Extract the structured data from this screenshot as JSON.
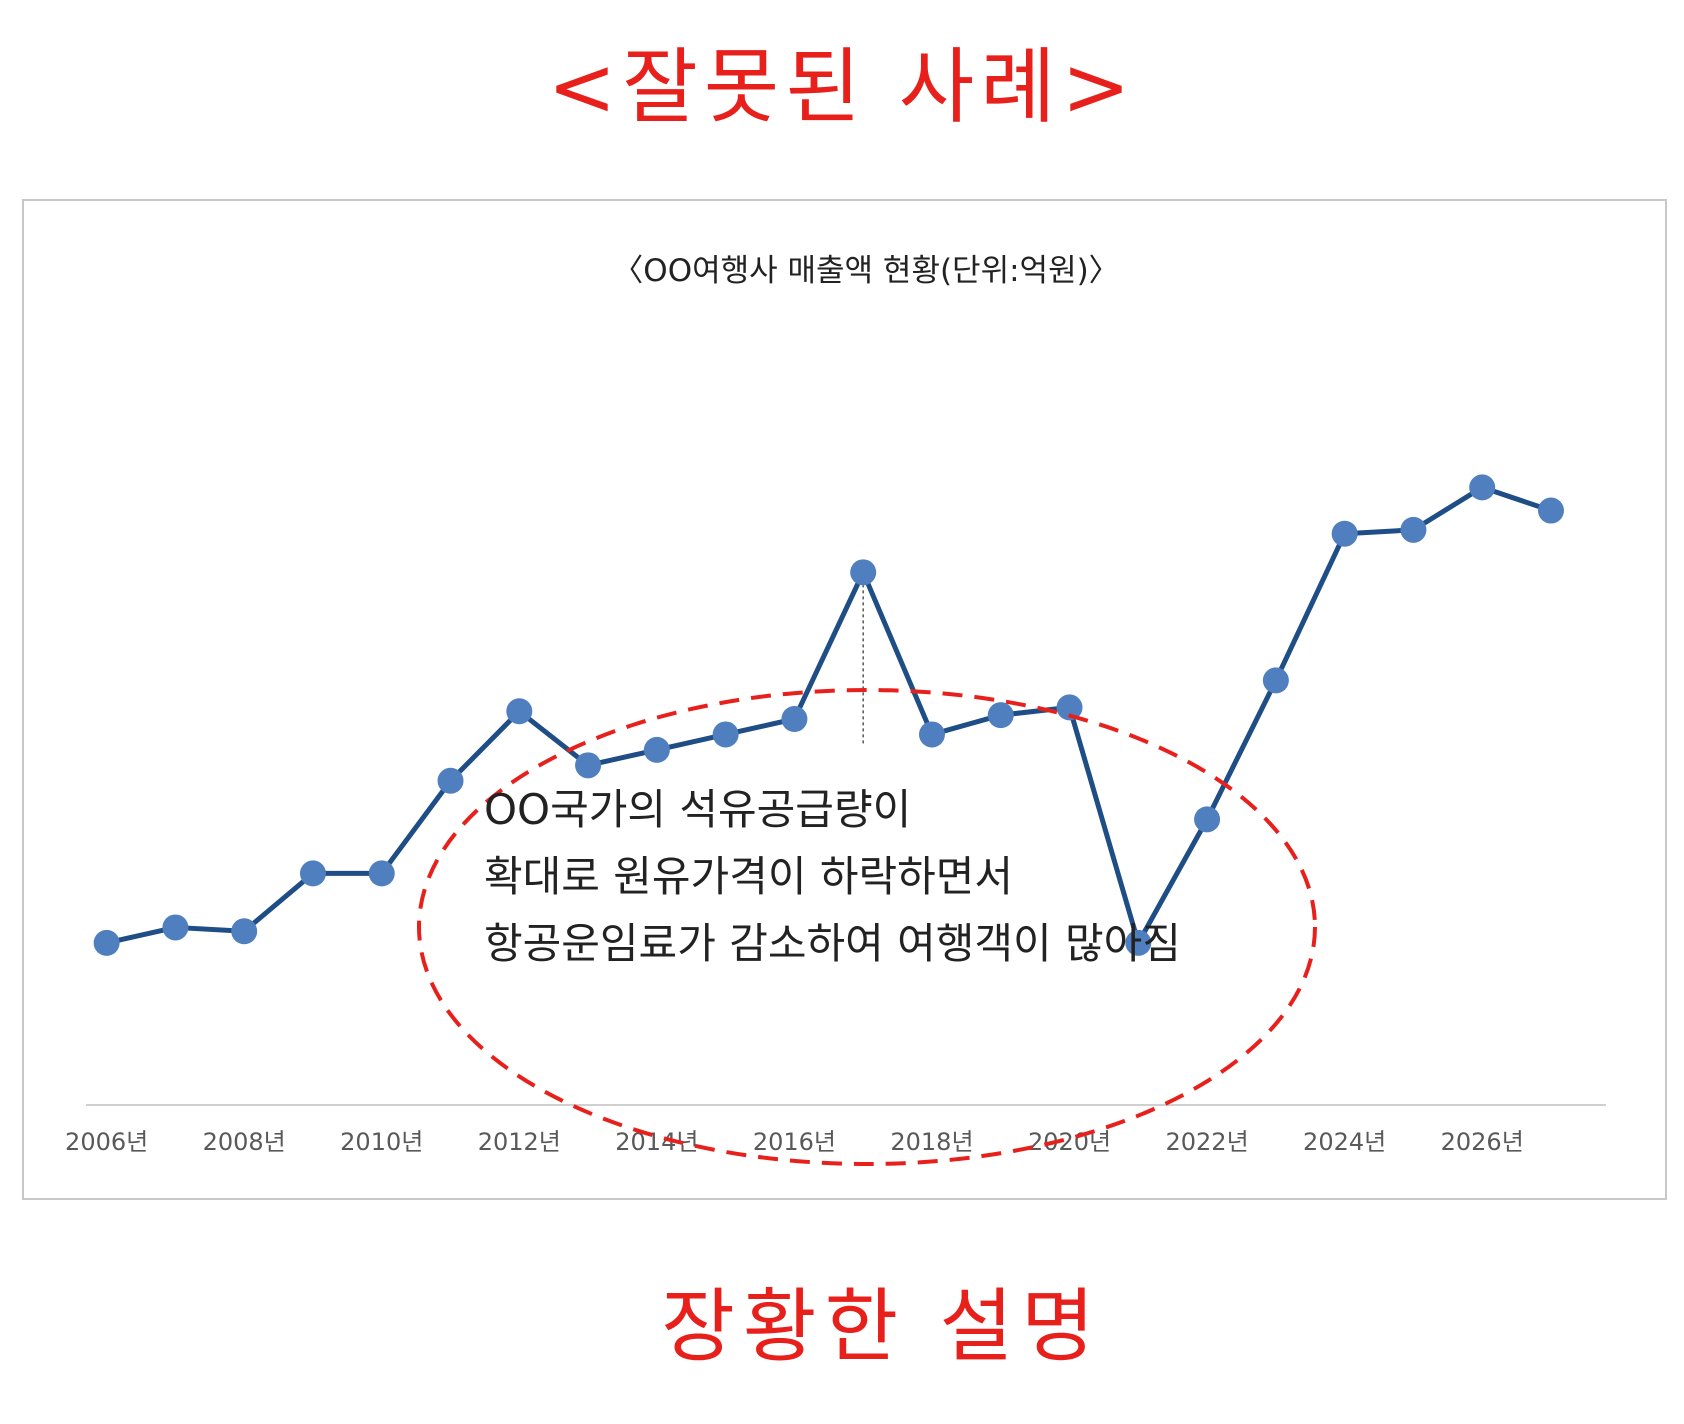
{
  "top_heading": "<잘못된 사례>",
  "bottom_heading": "장황한 설명",
  "annotation": {
    "lines": [
      "OO국가의 석유공급량이",
      "확대로 원유가격이 하락하면서",
      "항공운임료가 감소하여 여행객이 많아짐"
    ],
    "ellipse_color": "#e8201c"
  },
  "colors": {
    "line": "#1f4e86",
    "marker": "#4f7fbf",
    "axis": "#d0d0d0",
    "tick_text": "#595959"
  },
  "chart_data": {
    "type": "line",
    "title": "〈OO여행사 매출액 현황(단위:억원)〉",
    "xlabel": "",
    "ylabel": "",
    "x_ticks": [
      "2006년",
      "2008년",
      "2010년",
      "2012년",
      "2014년",
      "2016년",
      "2018년",
      "2020년",
      "2022년",
      "2024년",
      "2026년"
    ],
    "x": [
      2006,
      2007,
      2008,
      2009,
      2010,
      2011,
      2012,
      2013,
      2014,
      2015,
      2016,
      2017,
      2018,
      2019,
      2020,
      2021,
      2022,
      2023,
      2024,
      2025,
      2026,
      2027
    ],
    "values": [
      21,
      23,
      22.5,
      30,
      30,
      42,
      51,
      44,
      46,
      48,
      50,
      69,
      48,
      50.5,
      51.5,
      21,
      37,
      55,
      74,
      74.5,
      80,
      77
    ],
    "ylim": [
      0,
      100
    ],
    "xlim": [
      2005.7,
      2027.8
    ],
    "highlight_year": 2017,
    "grid": false,
    "legend": "none"
  }
}
